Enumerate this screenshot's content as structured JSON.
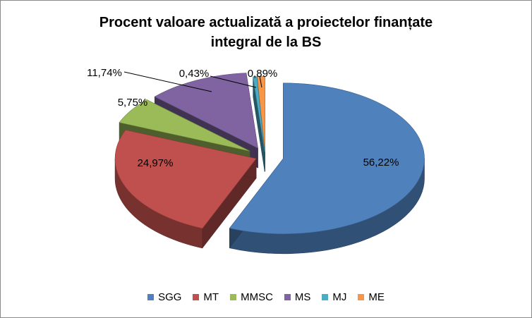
{
  "chart_data": {
    "type": "pie",
    "title_lines": [
      "Procent valoare actualizată a proiectelor finanțate",
      "integral de la BS"
    ],
    "slices": [
      {
        "name": "SGG",
        "value": 56.22,
        "label": "56,22%",
        "color": "#4F81BD"
      },
      {
        "name": "MT",
        "value": 24.97,
        "label": "24,97%",
        "color": "#C0504D"
      },
      {
        "name": "MMSC",
        "value": 5.75,
        "label": "5,75%",
        "color": "#9BBB59"
      },
      {
        "name": "MS",
        "value": 11.74,
        "label": "11,74%",
        "color": "#8064A2"
      },
      {
        "name": "MJ",
        "value": 0.43,
        "label": "0,43%",
        "color": "#4BACC6"
      },
      {
        "name": "ME",
        "value": 0.89,
        "label": "0,89%",
        "color": "#F79646"
      }
    ],
    "legend_position": "bottom",
    "exploded": true,
    "three_d": true
  }
}
